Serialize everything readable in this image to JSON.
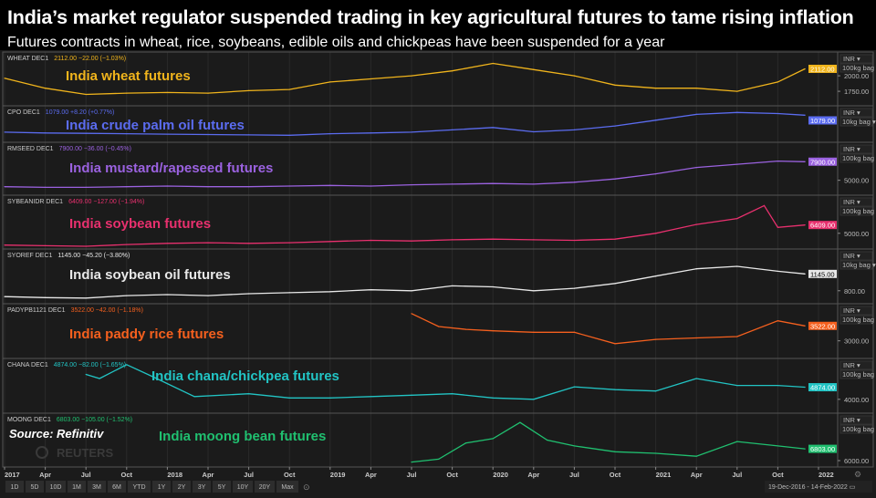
{
  "title": "India’s market regulator suspended trading in key agricultural futures to tame rising inflation",
  "subtitle": "Futures contracts in wheat, rice, soybeans, edible oils and chickpeas have been suspended for a year",
  "source": "Source: Refinitiv",
  "logo_text": "REUTERS",
  "date_range": {
    "from": "19-Dec-2016",
    "to": "14-Feb-2022"
  },
  "range_buttons": [
    "1D",
    "5D",
    "10D",
    "1M",
    "3M",
    "6M",
    "YTD",
    "1Y",
    "2Y",
    "3Y",
    "5Y",
    "10Y",
    "20Y",
    "Max"
  ],
  "chart_data": [
    {
      "type": "line",
      "ric": "WHEAT DEC1",
      "last": "2112.00",
      "change": "−22.00 (−1.03%)",
      "annotation": "India wheat futures",
      "color": "#f0b41c",
      "currency": "INR",
      "unit": "100kg bag",
      "ticks": [
        "2000.00",
        "1750.00"
      ],
      "tick_values": [
        2000,
        1750
      ],
      "ylim": [
        1560,
        2340
      ],
      "x": [
        "2017-01",
        "2017-04",
        "2017-07",
        "2017-10",
        "2018-01",
        "2018-04",
        "2018-07",
        "2018-10",
        "2019-01",
        "2019-04",
        "2019-07",
        "2019-10",
        "2020-01",
        "2020-04",
        "2020-07",
        "2020-10",
        "2021-01",
        "2021-04",
        "2021-07",
        "2021-10",
        "2021-12"
      ],
      "y": [
        1960,
        1800,
        1700,
        1720,
        1730,
        1720,
        1760,
        1780,
        1900,
        1950,
        2000,
        2080,
        2200,
        2100,
        2000,
        1850,
        1800,
        1800,
        1750,
        1900,
        2112
      ]
    },
    {
      "type": "line",
      "ric": "CPO DEC1",
      "last": "1079.00",
      "change": "+8.20 (+0.77%)",
      "annotation": "India crude palm oil futures",
      "color": "#5b6cf0",
      "currency": "INR",
      "unit": "10kg bag",
      "ticks": [],
      "tick_values": [],
      "ylim": [
        450,
        1250
      ],
      "x": [
        "2017-01",
        "2017-04",
        "2017-07",
        "2017-10",
        "2018-01",
        "2018-04",
        "2018-07",
        "2018-10",
        "2019-01",
        "2019-04",
        "2019-07",
        "2019-10",
        "2020-01",
        "2020-04",
        "2020-07",
        "2020-10",
        "2021-01",
        "2021-04",
        "2021-07",
        "2021-10",
        "2021-12"
      ],
      "y": [
        640,
        620,
        610,
        600,
        590,
        580,
        570,
        560,
        600,
        620,
        640,
        700,
        760,
        650,
        700,
        800,
        950,
        1100,
        1150,
        1120,
        1079
      ]
    },
    {
      "type": "line",
      "ric": "RMSEED DEC1",
      "last": "7900.00",
      "change": "−36.00 (−0.45%)",
      "annotation": "India mustard/rapeseed futures",
      "color": "#9b62e0",
      "currency": "INR",
      "unit": "100kg bag",
      "ticks": [
        "5000.00"
      ],
      "tick_values": [
        5000
      ],
      "ylim": [
        3100,
        10500
      ],
      "x": [
        "2017-01",
        "2017-04",
        "2017-07",
        "2017-10",
        "2018-01",
        "2018-04",
        "2018-07",
        "2018-10",
        "2019-01",
        "2019-04",
        "2019-07",
        "2019-10",
        "2020-01",
        "2020-04",
        "2020-07",
        "2020-10",
        "2021-01",
        "2021-04",
        "2021-07",
        "2021-10",
        "2021-12"
      ],
      "y": [
        4000,
        3900,
        3900,
        4000,
        4100,
        4000,
        4000,
        4100,
        4200,
        4100,
        4300,
        4400,
        4500,
        4400,
        4700,
        5200,
        6000,
        7000,
        7500,
        8000,
        7900
      ]
    },
    {
      "type": "line",
      "ric": "SYBEANIDR DEC1",
      "last": "6409.00",
      "change": "−127.00 (−1.94%)",
      "annotation": "India soybean futures",
      "color": "#e8306e",
      "currency": "INR",
      "unit": "100kg bag",
      "ticks": [
        "5000.00"
      ],
      "tick_values": [
        5000
      ],
      "ylim": [
        2800,
        11000
      ],
      "x": [
        "2017-01",
        "2017-04",
        "2017-07",
        "2017-10",
        "2018-01",
        "2018-04",
        "2018-07",
        "2018-10",
        "2019-01",
        "2019-04",
        "2019-07",
        "2019-10",
        "2020-01",
        "2020-04",
        "2020-07",
        "2020-10",
        "2021-01",
        "2021-04",
        "2021-07",
        "2021-09",
        "2021-10",
        "2021-12"
      ],
      "y": [
        3000,
        2900,
        2800,
        3100,
        3300,
        3400,
        3300,
        3400,
        3600,
        3800,
        3700,
        3900,
        4000,
        3900,
        3800,
        4000,
        5000,
        6500,
        7500,
        9700,
        6000,
        6409
      ]
    },
    {
      "type": "line",
      "ric": "SYOREF DEC1",
      "last": "1145.00",
      "change": "−45.20 (−3.80%)",
      "annotation": "India soybean oil futures",
      "color": "#e8e8e8",
      "currency": "INR",
      "unit": "10kg bag",
      "ticks": [
        "800.00"
      ],
      "tick_values": [
        800
      ],
      "ylim": [
        590,
        1600
      ],
      "x": [
        "2017-01",
        "2017-04",
        "2017-07",
        "2017-10",
        "2018-01",
        "2018-04",
        "2018-07",
        "2018-10",
        "2019-01",
        "2019-04",
        "2019-07",
        "2019-10",
        "2020-01",
        "2020-04",
        "2020-07",
        "2020-10",
        "2021-01",
        "2021-04",
        "2021-07",
        "2021-10",
        "2021-12"
      ],
      "y": [
        680,
        660,
        650,
        700,
        720,
        700,
        740,
        760,
        780,
        820,
        800,
        900,
        880,
        800,
        850,
        950,
        1100,
        1250,
        1300,
        1200,
        1145
      ]
    },
    {
      "type": "line",
      "ric": "PADYPB1121 DEC1",
      "last": "3522.00",
      "change": "−42.00 (−1.18%)",
      "annotation": "India paddy rice futures",
      "color": "#f5601e",
      "currency": "INR",
      "unit": "100kg bag",
      "ticks": [
        "3000.00"
      ],
      "tick_values": [
        3000
      ],
      "ylim": [
        2480,
        4200
      ],
      "x": [
        "2019-07",
        "2019-09",
        "2019-11",
        "2020-01",
        "2020-04",
        "2020-07",
        "2020-10",
        "2021-01",
        "2021-04",
        "2021-07",
        "2021-10",
        "2021-12"
      ],
      "y": [
        3950,
        3500,
        3400,
        3350,
        3300,
        3300,
        2900,
        3050,
        3100,
        3150,
        3700,
        3522
      ]
    },
    {
      "type": "line",
      "ric": "CHANA DEC1",
      "last": "4874.00",
      "change": "−82.00 (−1.65%)",
      "annotation": "India chana/chickpea futures",
      "color": "#22c4c4",
      "currency": "INR",
      "unit": "100kg bag",
      "ticks": [
        "4000.00"
      ],
      "tick_values": [
        4000
      ],
      "ylim": [
        3200,
        6750
      ],
      "x": [
        "2017-07",
        "2017-08",
        "2017-10",
        "2017-12",
        "2018-03",
        "2018-07",
        "2018-10",
        "2019-01",
        "2019-04",
        "2019-07",
        "2019-10",
        "2020-01",
        "2020-04",
        "2020-07",
        "2020-10",
        "2021-01",
        "2021-04",
        "2021-07",
        "2021-10",
        "2021-12"
      ],
      "y": [
        5800,
        5500,
        6500,
        5600,
        4200,
        4400,
        4100,
        4100,
        4200,
        4300,
        4400,
        4100,
        4000,
        4900,
        4700,
        4600,
        5500,
        5000,
        5000,
        4874
      ]
    },
    {
      "type": "line",
      "ric": "MOONG DEC1",
      "last": "6803.00",
      "change": "−105.00 (−1.52%)",
      "annotation": "India moong bean futures",
      "color": "#20c070",
      "currency": "INR",
      "unit": "100kg bag",
      "ticks": [
        "6000.00"
      ],
      "tick_values": [
        6000
      ],
      "ylim": [
        5750,
        9050
      ],
      "x": [
        "2019-07",
        "2019-09",
        "2019-11",
        "2020-01",
        "2020-03",
        "2020-05",
        "2020-07",
        "2020-10",
        "2021-01",
        "2021-04",
        "2021-07",
        "2021-10",
        "2021-12"
      ],
      "y": [
        5900,
        6100,
        7200,
        7500,
        8600,
        7400,
        7000,
        6600,
        6500,
        6300,
        7300,
        7000,
        6803
      ]
    }
  ],
  "x_axis": {
    "ticks": [
      {
        "label": "2017",
        "date": "2017-01"
      },
      {
        "label": "Apr",
        "date": "2017-04"
      },
      {
        "label": "Jul",
        "date": "2017-07"
      },
      {
        "label": "Oct",
        "date": "2017-10"
      },
      {
        "label": "2018",
        "date": "2018-01"
      },
      {
        "label": "Apr",
        "date": "2018-04"
      },
      {
        "label": "Jul",
        "date": "2018-07"
      },
      {
        "label": "Oct",
        "date": "2018-10"
      },
      {
        "label": "2019",
        "date": "2019-01"
      },
      {
        "label": "Apr",
        "date": "2019-04"
      },
      {
        "label": "Jul",
        "date": "2019-07"
      },
      {
        "label": "Oct",
        "date": "2019-10"
      },
      {
        "label": "2020",
        "date": "2020-01"
      },
      {
        "label": "Apr",
        "date": "2020-04"
      },
      {
        "label": "Jul",
        "date": "2020-07"
      },
      {
        "label": "Oct",
        "date": "2020-10"
      },
      {
        "label": "2021",
        "date": "2021-01"
      },
      {
        "label": "Apr",
        "date": "2021-04"
      },
      {
        "label": "Jul",
        "date": "2021-07"
      },
      {
        "label": "Oct",
        "date": "2021-10"
      },
      {
        "label": "2022",
        "date": "2022-01"
      }
    ]
  }
}
